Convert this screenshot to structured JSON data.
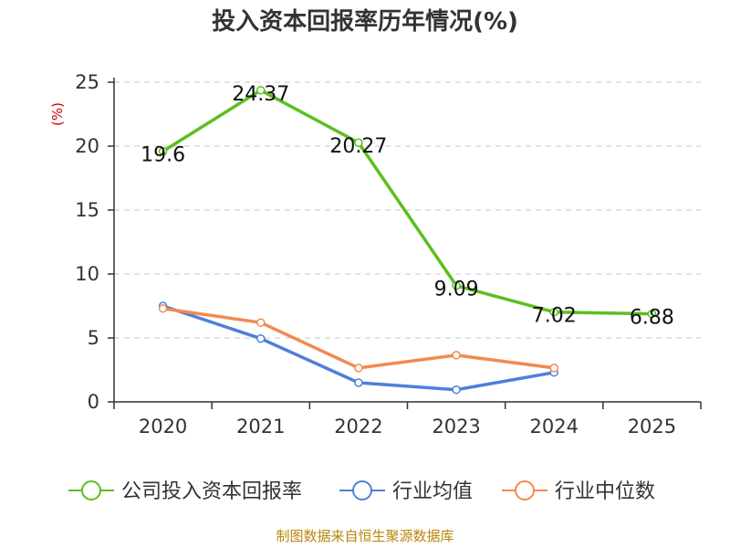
{
  "chart_data": {
    "type": "line",
    "title": "投入资本回报率历年情况(%)",
    "ylabel": "(%)",
    "xlabel": "",
    "categories": [
      "2020",
      "2021",
      "2022",
      "2023",
      "2024",
      "2025"
    ],
    "ylim": [
      0,
      25
    ],
    "yticks": [
      0,
      5,
      10,
      15,
      20,
      25
    ],
    "grid": true,
    "legend_position": "bottom",
    "series": [
      {
        "name": "公司投入资本回报率",
        "color": "#5cbf1e",
        "values": [
          19.6,
          24.37,
          20.27,
          9.09,
          7.02,
          6.88
        ],
        "labels": [
          "19.6",
          "24.37",
          "20.27",
          "9.09",
          "7.02",
          "6.88"
        ]
      },
      {
        "name": "行业均值",
        "color": "#4f7fd9",
        "values": [
          7.5,
          4.95,
          1.5,
          0.95,
          2.3,
          null
        ]
      },
      {
        "name": "行业中位数",
        "color": "#f28a50",
        "values": [
          7.3,
          6.2,
          2.65,
          3.65,
          2.65,
          null
        ]
      }
    ],
    "source": "制图数据来自恒生聚源数据库"
  }
}
